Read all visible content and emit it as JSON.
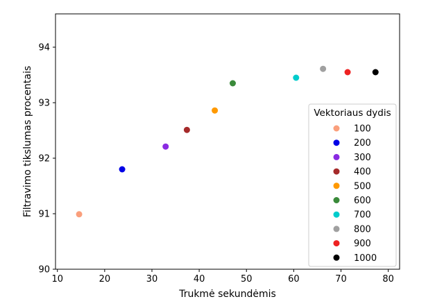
{
  "chart_data": {
    "type": "scatter",
    "xlabel": "Trukmė sekundėmis",
    "ylabel": "Filtravimo tikslumas procentais",
    "xlim": [
      9.6,
      82.4
    ],
    "ylim": [
      90.0,
      94.6
    ],
    "xticks": [
      10,
      20,
      30,
      40,
      50,
      60,
      70,
      80
    ],
    "yticks": [
      90,
      91,
      92,
      93,
      94
    ],
    "grid": false,
    "legend": {
      "title": "Vektoriaus dydis",
      "placement": "lower-right"
    },
    "series": [
      {
        "name": "100",
        "color": "#fa9f7c",
        "x": [
          14.6
        ],
        "y": [
          90.99
        ]
      },
      {
        "name": "200",
        "color": "#0000e6",
        "x": [
          23.7
        ],
        "y": [
          91.8
        ]
      },
      {
        "name": "300",
        "color": "#8a2be2",
        "x": [
          32.9
        ],
        "y": [
          92.21
        ]
      },
      {
        "name": "400",
        "color": "#a52a2a",
        "x": [
          37.4
        ],
        "y": [
          92.51
        ]
      },
      {
        "name": "500",
        "color": "#ff9900",
        "x": [
          43.3
        ],
        "y": [
          92.86
        ]
      },
      {
        "name": "600",
        "color": "#3a8a3a",
        "x": [
          47.1
        ],
        "y": [
          93.35
        ]
      },
      {
        "name": "700",
        "color": "#00cccc",
        "x": [
          60.5
        ],
        "y": [
          93.45
        ]
      },
      {
        "name": "800",
        "color": "#a0a0a0",
        "x": [
          66.2
        ],
        "y": [
          93.61
        ]
      },
      {
        "name": "900",
        "color": "#ee2222",
        "x": [
          71.4
        ],
        "y": [
          93.55
        ]
      },
      {
        "name": "1000",
        "color": "#000000",
        "x": [
          77.3
        ],
        "y": [
          93.55
        ]
      }
    ]
  }
}
